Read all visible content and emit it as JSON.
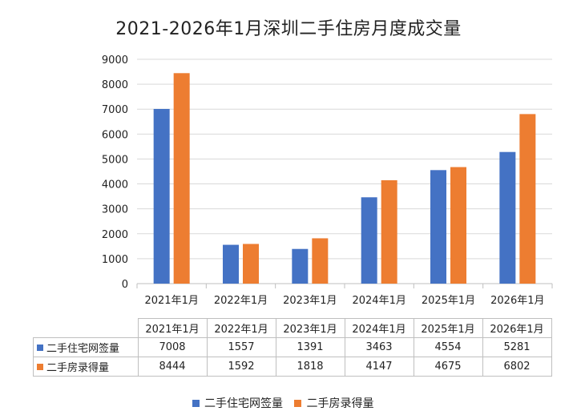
{
  "chart_data": {
    "type": "bar",
    "title": "2021-2026年1月深圳二手住房月度成交量",
    "categories": [
      "2021年1月",
      "2022年1月",
      "2023年1月",
      "2024年1月",
      "2025年1月",
      "2026年1月"
    ],
    "series": [
      {
        "name": "二手住宅网签量",
        "color": "#4472c4",
        "values": [
          7008,
          1557,
          1391,
          3463,
          4554,
          5281
        ]
      },
      {
        "name": "二手房录得量",
        "color": "#ed7d31",
        "values": [
          8444,
          1592,
          1818,
          4147,
          4675,
          6802
        ]
      }
    ],
    "ylim": [
      0,
      9000
    ],
    "yticks": [
      "0",
      "1000",
      "2000",
      "3000",
      "4000",
      "5000",
      "6000",
      "7000",
      "8000",
      "9000"
    ],
    "grid": true,
    "legend": "bottom",
    "data_table": true
  }
}
